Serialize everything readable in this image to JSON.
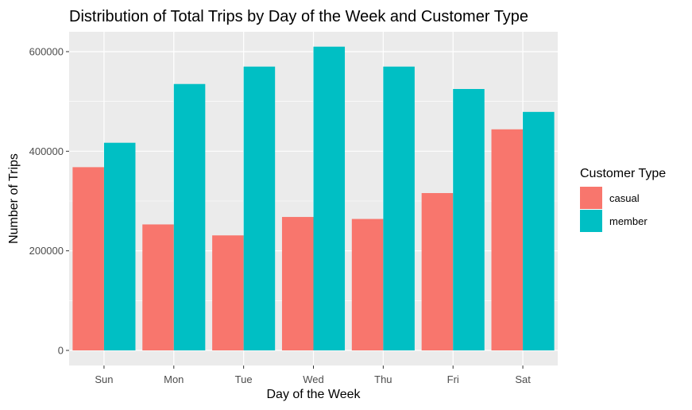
{
  "chart_data": {
    "type": "bar",
    "title": "Distribution of Total Trips by Day of the Week and Customer Type",
    "xlabel": "Day of the Week",
    "ylabel": "Number of Trips",
    "categories": [
      "Sun",
      "Mon",
      "Tue",
      "Wed",
      "Thu",
      "Fri",
      "Sat"
    ],
    "series": [
      {
        "name": "casual",
        "color": "#F8766D",
        "values": [
          368000,
          253000,
          231000,
          268000,
          264000,
          316000,
          444000
        ]
      },
      {
        "name": "member",
        "color": "#00BFC4",
        "values": [
          417000,
          535000,
          570000,
          610000,
          570000,
          525000,
          479000
        ]
      }
    ],
    "yticks": [
      0,
      200000,
      400000,
      600000
    ],
    "ytick_labels": [
      "0",
      "200000",
      "400000",
      "600000"
    ],
    "ylim": [
      0,
      640000
    ],
    "grid": true,
    "legend": {
      "title": "Customer Type",
      "position": "right"
    },
    "panel_color": "#EBEBEB",
    "grid_color": "#FFFFFF"
  }
}
